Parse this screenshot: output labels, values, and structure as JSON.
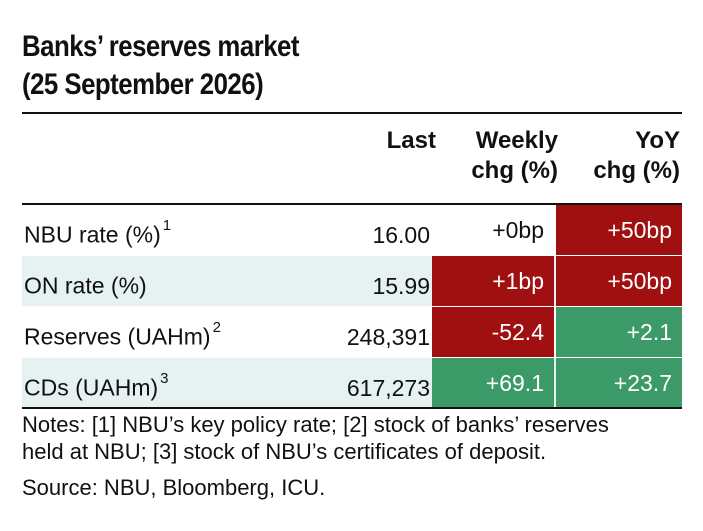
{
  "title_line1": "Banks’ reserves market",
  "title_line2": "(25 September 2026)",
  "columns": {
    "last": "Last",
    "weekly_line1": "Weekly",
    "weekly_line2": "chg (%)",
    "yoy_line1": "YoY",
    "yoy_line2": "chg (%)"
  },
  "rows": [
    {
      "label": "NBU rate (%)",
      "sup": "1",
      "last": "16.00",
      "weekly": "+0bp",
      "yoy": "+50bp",
      "weekly_color": "none",
      "yoy_color": "#a01010"
    },
    {
      "label": "ON rate (%)",
      "sup": "",
      "last": "15.99",
      "weekly": "+1bp",
      "yoy": "+50bp",
      "weekly_color": "#a01010",
      "yoy_color": "#a01010"
    },
    {
      "label": "Reserves (UAHm)",
      "sup": "2",
      "last": "248,391",
      "weekly": "-52.4",
      "yoy": "+2.1",
      "weekly_color": "#a01010",
      "yoy_color": "#3b9a67"
    },
    {
      "label": "CDs (UAHm)",
      "sup": "3",
      "last": "617,273",
      "weekly": "+69.1",
      "yoy": "+23.7",
      "weekly_color": "#3b9a67",
      "yoy_color": "#3b9a67"
    }
  ],
  "notes_line1": "Notes: [1] NBU’s key policy rate; [2] stock of banks’ reserves",
  "notes_line2": "held at NBU; [3] stock of NBU’s certificates of deposit.",
  "source": "Source: NBU, Bloomberg, ICU."
}
